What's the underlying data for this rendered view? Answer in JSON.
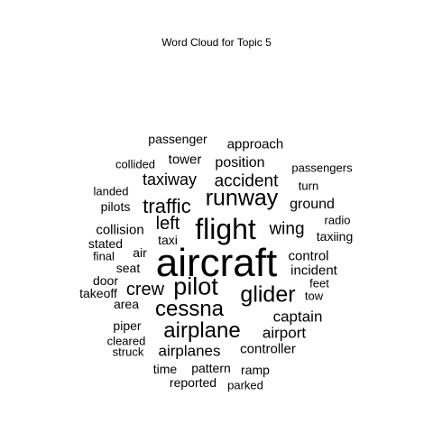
{
  "chart_data": {
    "type": "wordcloud",
    "title": "Word Cloud for Topic 5",
    "text_color": "#000000",
    "background": "#ffffff",
    "words": [
      {
        "text": "aircraft",
        "weight": 1.0
      },
      {
        "text": "flight",
        "weight": 0.62
      },
      {
        "text": "runway",
        "weight": 0.46
      },
      {
        "text": "pilot",
        "weight": 0.5
      },
      {
        "text": "glider",
        "weight": 0.46
      },
      {
        "text": "cessna",
        "weight": 0.45
      },
      {
        "text": "airplane",
        "weight": 0.45
      },
      {
        "text": "traffic",
        "weight": 0.4
      },
      {
        "text": "crew",
        "weight": 0.36
      },
      {
        "text": "accident",
        "weight": 0.33
      },
      {
        "text": "taxiway",
        "weight": 0.3
      },
      {
        "text": "left",
        "weight": 0.33
      },
      {
        "text": "wing",
        "weight": 0.3
      },
      {
        "text": "airplanes",
        "weight": 0.28
      },
      {
        "text": "airport",
        "weight": 0.26
      },
      {
        "text": "captain",
        "weight": 0.26
      },
      {
        "text": "position",
        "weight": 0.24
      },
      {
        "text": "ground",
        "weight": 0.24
      },
      {
        "text": "approach",
        "weight": 0.23
      },
      {
        "text": "collision",
        "weight": 0.23
      },
      {
        "text": "controller",
        "weight": 0.23
      },
      {
        "text": "tower",
        "weight": 0.22
      },
      {
        "text": "control",
        "weight": 0.22
      },
      {
        "text": "incident",
        "weight": 0.22
      },
      {
        "text": "passenger",
        "weight": 0.2
      },
      {
        "text": "pilots",
        "weight": 0.2
      },
      {
        "text": "seat",
        "weight": 0.2
      },
      {
        "text": "area",
        "weight": 0.2
      },
      {
        "text": "air",
        "weight": 0.2
      },
      {
        "text": "stated",
        "weight": 0.2
      },
      {
        "text": "taxi",
        "weight": 0.18
      },
      {
        "text": "taxiing",
        "weight": 0.18
      },
      {
        "text": "door",
        "weight": 0.18
      },
      {
        "text": "takeoff",
        "weight": 0.18
      },
      {
        "text": "piper",
        "weight": 0.18
      },
      {
        "text": "time",
        "weight": 0.18
      },
      {
        "text": "pattern",
        "weight": 0.18
      },
      {
        "text": "ramp",
        "weight": 0.18
      },
      {
        "text": "reported",
        "weight": 0.18
      },
      {
        "text": "collided",
        "weight": 0.16
      },
      {
        "text": "passengers",
        "weight": 0.16
      },
      {
        "text": "landed",
        "weight": 0.16
      },
      {
        "text": "turn",
        "weight": 0.16
      },
      {
        "text": "radio",
        "weight": 0.16
      },
      {
        "text": "final",
        "weight": 0.16
      },
      {
        "text": "feet",
        "weight": 0.16
      },
      {
        "text": "tow",
        "weight": 0.16
      },
      {
        "text": "cleared",
        "weight": 0.16
      },
      {
        "text": "struck",
        "weight": 0.16
      },
      {
        "text": "parked",
        "weight": 0.16
      }
    ]
  }
}
